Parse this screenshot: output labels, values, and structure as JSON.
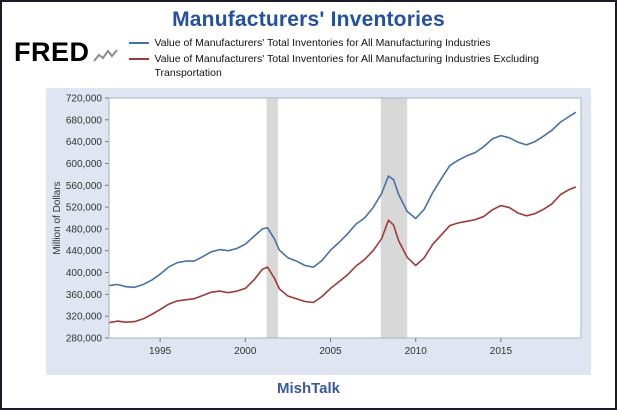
{
  "page": {
    "title": "Manufacturers' Inventories"
  },
  "header": {
    "brand": "FRED"
  },
  "legend": [
    {
      "label": "Value of Manufacturers' Total Inventories for All Manufacturing Industries",
      "color": "#4572a7"
    },
    {
      "label": "Value of Manufacturers' Total Inventories for All Manufacturing Industries Excluding Transportation",
      "color": "#9e3a38"
    }
  ],
  "footer": {
    "label": "MishTalk"
  },
  "colors": {
    "title_blue": "#2350a0",
    "footer_blue": "#3a5a9b",
    "panel_bg": "#dfe6f1",
    "recession_gray": "#d8d8d8",
    "outer_border": "#1c1c28"
  },
  "chart_data": {
    "type": "line",
    "title": "Manufacturers' Inventories",
    "xlabel": "",
    "ylabel": "Million of Dollars",
    "xlim": [
      1992,
      2019.7
    ],
    "ylim": [
      280000,
      720000
    ],
    "grid": false,
    "legend_position": "top",
    "plot_bg": "#ffffff",
    "panel_bg": "#dfe6f1",
    "recession_color": "#d8d8d8",
    "border_color": "#aab2c0",
    "tick_color": "#777777",
    "x_ticks": [
      1995,
      2000,
      2005,
      2010,
      2015
    ],
    "y_ticks": [
      280000,
      320000,
      360000,
      400000,
      440000,
      480000,
      520000,
      560000,
      600000,
      640000,
      680000,
      720000
    ],
    "recessions": [
      [
        2001.25,
        2001.92
      ],
      [
        2007.95,
        2009.5
      ]
    ],
    "x": [
      1992,
      1992.5,
      1993,
      1993.5,
      1994,
      1994.5,
      1995,
      1995.5,
      1996,
      1996.5,
      1997,
      1997.5,
      1998,
      1998.5,
      1999,
      1999.5,
      2000,
      2000.5,
      2001,
      2001.3,
      2001.7,
      2002,
      2002.5,
      2003,
      2003.5,
      2004,
      2004.5,
      2005,
      2005.5,
      2006,
      2006.5,
      2007,
      2007.5,
      2008,
      2008.4,
      2008.7,
      2009,
      2009.5,
      2010,
      2010.5,
      2011,
      2011.5,
      2012,
      2012.5,
      2013,
      2013.5,
      2014,
      2014.5,
      2015,
      2015.5,
      2016,
      2016.5,
      2017,
      2017.5,
      2018,
      2018.5,
      2019,
      2019.4
    ],
    "series": [
      {
        "name": "Value of Manufacturers' Total Inventories for All Manufacturing Industries",
        "color": "#4572a7",
        "values": [
          376000,
          378000,
          374000,
          373000,
          378000,
          386000,
          397000,
          410000,
          418000,
          421000,
          421000,
          429000,
          438000,
          442000,
          440000,
          444000,
          452000,
          466000,
          480000,
          482000,
          462000,
          441000,
          427000,
          421000,
          413000,
          410000,
          422000,
          441000,
          455000,
          471000,
          489000,
          500000,
          519000,
          545000,
          577000,
          570000,
          543000,
          512000,
          499000,
          516000,
          547000,
          572000,
          596000,
          606000,
          614000,
          620000,
          631000,
          645000,
          651000,
          647000,
          639000,
          634000,
          640000,
          650000,
          661000,
          676000,
          686000,
          694000
        ]
      },
      {
        "name": "Value of Manufacturers' Total Inventories for All Manufacturing Industries Excluding Transportation",
        "color": "#9e3a38",
        "values": [
          308000,
          311000,
          309000,
          310000,
          315000,
          323000,
          332000,
          342000,
          348000,
          350000,
          352000,
          358000,
          364000,
          366000,
          363000,
          366000,
          371000,
          386000,
          406000,
          410000,
          390000,
          370000,
          357000,
          352000,
          347000,
          345000,
          356000,
          371000,
          383000,
          396000,
          412000,
          424000,
          440000,
          462000,
          496000,
          487000,
          458000,
          428000,
          413000,
          427000,
          452000,
          469000,
          486000,
          491000,
          494000,
          497000,
          503000,
          515000,
          523000,
          519000,
          509000,
          504000,
          508000,
          516000,
          526000,
          543000,
          552000,
          557000
        ]
      }
    ]
  }
}
